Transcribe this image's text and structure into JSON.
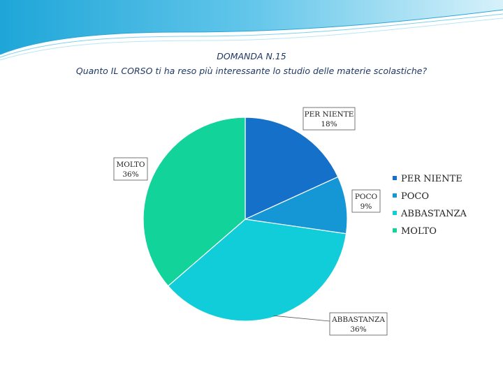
{
  "slide": {
    "title_line1": "DOMANDA N.15",
    "title_line2": "Quanto IL CORSO ti ha reso più interessante lo studio delle materie scolastiche?"
  },
  "chart_data": {
    "type": "pie",
    "title": "",
    "categories": [
      "PER NIENTE",
      "POCO",
      "ABBASTANZA",
      "MOLTO"
    ],
    "values": [
      18,
      9,
      36,
      36
    ],
    "value_labels": [
      "18%",
      "9%",
      "36%",
      "36%"
    ],
    "colors": [
      "#1470c8",
      "#1597d6",
      "#11ccd9",
      "#12d39a"
    ],
    "legend": {
      "placement": "right",
      "entries": [
        "PER NIENTE",
        "POCO",
        "ABBASTANZA",
        "MOLTO"
      ]
    }
  }
}
